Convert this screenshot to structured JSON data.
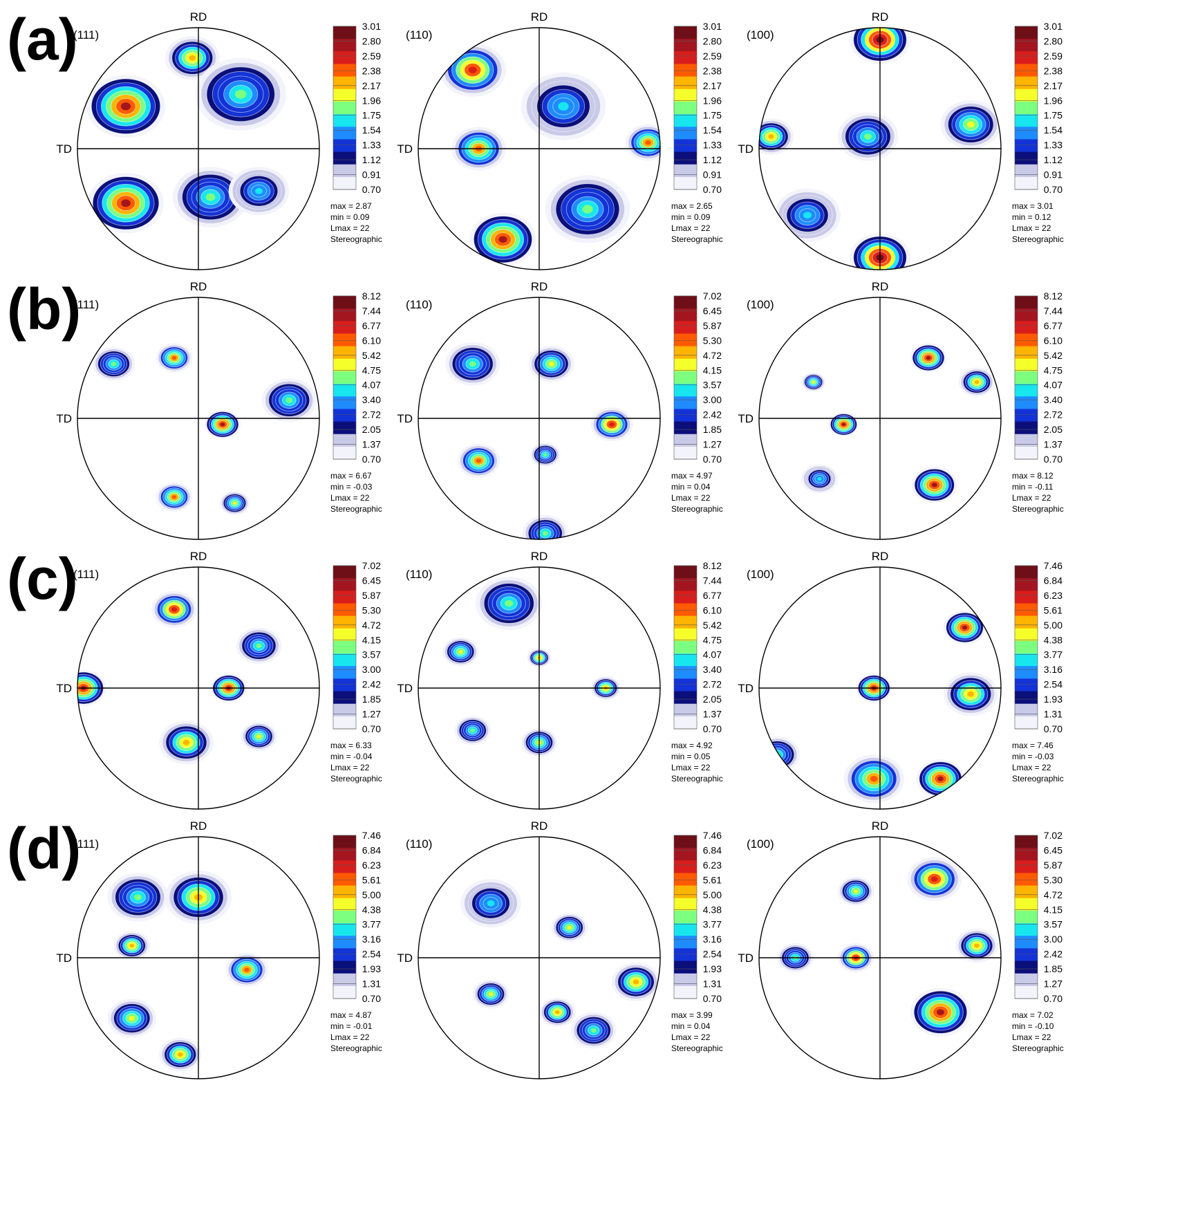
{
  "labels": {
    "rd": "RD",
    "td": "TD",
    "projection": "Stereographic"
  },
  "rows": [
    {
      "label": "(a)",
      "figures": [
        {
          "plane": "(111)",
          "ticks": [
            "3.01",
            "2.80",
            "2.59",
            "2.38",
            "2.17",
            "1.96",
            "1.75",
            "1.54",
            "1.33",
            "1.12",
            "0.91",
            "0.70"
          ],
          "max": "max = 2.87",
          "min": "min = 0.09",
          "lmax": "Lmax = 22"
        },
        {
          "plane": "(110)",
          "ticks": [
            "3.01",
            "2.80",
            "2.59",
            "2.38",
            "2.17",
            "1.96",
            "1.75",
            "1.54",
            "1.33",
            "1.12",
            "0.91",
            "0.70"
          ],
          "max": "max = 2.65",
          "min": "min = 0.09",
          "lmax": "Lmax = 22"
        },
        {
          "plane": "(100)",
          "ticks": [
            "3.01",
            "2.80",
            "2.59",
            "2.38",
            "2.17",
            "1.96",
            "1.75",
            "1.54",
            "1.33",
            "1.12",
            "0.91",
            "0.70"
          ],
          "max": "max = 3.01",
          "min": "min = 0.12",
          "lmax": "Lmax = 22"
        }
      ]
    },
    {
      "label": "(b)",
      "figures": [
        {
          "plane": "(111)",
          "ticks": [
            "8.12",
            "7.44",
            "6.77",
            "6.10",
            "5.42",
            "4.75",
            "4.07",
            "3.40",
            "2.72",
            "2.05",
            "1.37",
            "0.70"
          ],
          "max": "max = 6.67",
          "min": "min = -0.03",
          "lmax": "Lmax = 22"
        },
        {
          "plane": "(110)",
          "ticks": [
            "7.02",
            "6.45",
            "5.87",
            "5.30",
            "4.72",
            "4.15",
            "3.57",
            "3.00",
            "2.42",
            "1.85",
            "1.27",
            "0.70"
          ],
          "max": "max = 4.97",
          "min": "min = 0.04",
          "lmax": "Lmax = 22"
        },
        {
          "plane": "(100)",
          "ticks": [
            "8.12",
            "7.44",
            "6.77",
            "6.10",
            "5.42",
            "4.75",
            "4.07",
            "3.40",
            "2.72",
            "2.05",
            "1.37",
            "0.70"
          ],
          "max": "max = 8.12",
          "min": "min = -0.11",
          "lmax": "Lmax = 22"
        }
      ]
    },
    {
      "label": "(c)",
      "figures": [
        {
          "plane": "(111)",
          "ticks": [
            "7.02",
            "6.45",
            "5.87",
            "5.30",
            "4.72",
            "4.15",
            "3.57",
            "3.00",
            "2.42",
            "1.85",
            "1.27",
            "0.70"
          ],
          "max": "max = 6.33",
          "min": "min = -0.04",
          "lmax": "Lmax = 22"
        },
        {
          "plane": "(110)",
          "ticks": [
            "8.12",
            "7.44",
            "6.77",
            "6.10",
            "5.42",
            "4.75",
            "4.07",
            "3.40",
            "2.72",
            "2.05",
            "1.37",
            "0.70"
          ],
          "max": "max = 4.92",
          "min": "min = 0.05",
          "lmax": "Lmax = 22"
        },
        {
          "plane": "(100)",
          "ticks": [
            "7.46",
            "6.84",
            "6.23",
            "5.61",
            "5.00",
            "4.38",
            "3.77",
            "3.16",
            "2.54",
            "1.93",
            "1.31",
            "0.70"
          ],
          "max": "max = 7.46",
          "min": "min = -0.03",
          "lmax": "Lmax = 22"
        }
      ]
    },
    {
      "label": "(d)",
      "figures": [
        {
          "plane": "(111)",
          "ticks": [
            "7.46",
            "6.84",
            "6.23",
            "5.61",
            "5.00",
            "4.38",
            "3.77",
            "3.16",
            "2.54",
            "1.93",
            "1.31",
            "0.70"
          ],
          "max": "max = 4.87",
          "min": "min = -0.01",
          "lmax": "Lmax = 22"
        },
        {
          "plane": "(110)",
          "ticks": [
            "7.46",
            "6.84",
            "6.23",
            "5.61",
            "5.00",
            "4.38",
            "3.77",
            "3.16",
            "2.54",
            "1.93",
            "1.31",
            "0.70"
          ],
          "max": "max = 3.99",
          "min": "min = 0.04",
          "lmax": "Lmax = 22"
        },
        {
          "plane": "(100)",
          "ticks": [
            "7.02",
            "6.45",
            "5.87",
            "5.30",
            "4.72",
            "4.15",
            "3.57",
            "3.00",
            "2.42",
            "1.85",
            "1.27",
            "0.70"
          ],
          "max": "max = 7.02",
          "min": "min = -0.10",
          "lmax": "Lmax = 22"
        }
      ]
    }
  ],
  "colormap": [
    "#6e0f18",
    "#a31620",
    "#d81e1c",
    "#ff5a00",
    "#ffb400",
    "#f5ff2a",
    "#7dff80",
    "#18e6ee",
    "#1e8cff",
    "#1333d6",
    "#0a0f7a",
    "#c9c9e8",
    "#f3f3fb"
  ]
}
